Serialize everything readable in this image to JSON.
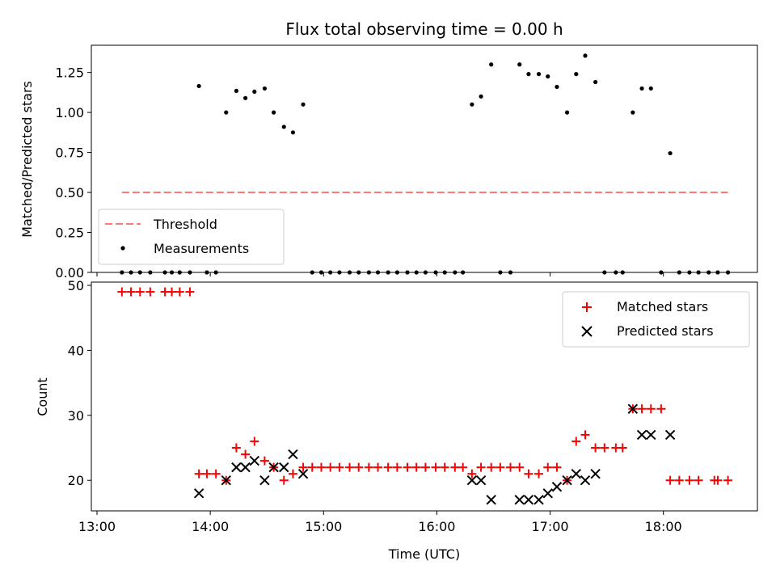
{
  "chart_data": [
    {
      "type": "scatter",
      "title": "Flux total observing time = 0.00 h",
      "xlabel": "",
      "ylabel": "Matched/Predicted stars",
      "xlim": [
        12.95,
        18.83
      ],
      "ylim": [
        0,
        1.42
      ],
      "yticks": [
        0.0,
        0.25,
        0.5,
        0.75,
        1.0,
        1.25
      ],
      "ytick_labels": [
        "0.00",
        "0.25",
        "0.50",
        "0.75",
        "1.00",
        "1.25"
      ],
      "legend_position": "lower-left",
      "legend": [
        "Threshold",
        "Measurements"
      ],
      "threshold": {
        "name": "Threshold",
        "y": 0.5,
        "x_start": 13.22,
        "x_end": 18.57,
        "color": "#ff7777"
      },
      "series": [
        {
          "name": "Measurements",
          "color": "#000000",
          "points": [
            [
              13.22,
              0
            ],
            [
              13.3,
              0
            ],
            [
              13.38,
              0
            ],
            [
              13.47,
              0
            ],
            [
              13.6,
              0
            ],
            [
              13.66,
              0
            ],
            [
              13.73,
              0
            ],
            [
              13.82,
              0
            ],
            [
              13.9,
              1.165
            ],
            [
              13.97,
              0
            ],
            [
              14.05,
              0
            ],
            [
              14.14,
              1.0
            ],
            [
              14.23,
              1.135
            ],
            [
              14.31,
              1.09
            ],
            [
              14.39,
              1.13
            ],
            [
              14.48,
              1.15
            ],
            [
              14.56,
              1.0
            ],
            [
              14.65,
              0.91
            ],
            [
              14.73,
              0.875
            ],
            [
              14.82,
              1.05
            ],
            [
              14.9,
              0
            ],
            [
              14.98,
              0
            ],
            [
              15.06,
              0
            ],
            [
              15.14,
              0
            ],
            [
              15.23,
              0
            ],
            [
              15.31,
              0
            ],
            [
              15.4,
              0
            ],
            [
              15.48,
              0
            ],
            [
              15.57,
              0
            ],
            [
              15.65,
              0
            ],
            [
              15.74,
              0
            ],
            [
              15.82,
              0
            ],
            [
              15.9,
              0
            ],
            [
              15.99,
              0
            ],
            [
              16.07,
              0
            ],
            [
              16.16,
              0
            ],
            [
              16.23,
              0
            ],
            [
              16.31,
              1.05
            ],
            [
              16.39,
              1.1
            ],
            [
              16.48,
              1.3
            ],
            [
              16.56,
              0
            ],
            [
              16.65,
              0
            ],
            [
              16.73,
              1.3
            ],
            [
              16.81,
              1.24
            ],
            [
              16.9,
              1.24
            ],
            [
              16.98,
              1.225
            ],
            [
              17.06,
              1.16
            ],
            [
              17.15,
              1.0
            ],
            [
              17.23,
              1.24
            ],
            [
              17.31,
              1.355
            ],
            [
              17.4,
              1.19
            ],
            [
              17.48,
              0
            ],
            [
              17.58,
              0
            ],
            [
              17.64,
              0
            ],
            [
              17.73,
              1.0
            ],
            [
              17.81,
              1.15
            ],
            [
              17.89,
              1.15
            ],
            [
              17.98,
              0
            ],
            [
              18.06,
              0.745
            ],
            [
              18.14,
              0
            ],
            [
              18.23,
              0
            ],
            [
              18.31,
              0
            ],
            [
              18.4,
              0
            ],
            [
              18.48,
              0
            ],
            [
              18.57,
              0
            ]
          ]
        }
      ]
    },
    {
      "type": "scatter",
      "title": "",
      "xlabel": "Time (UTC)",
      "ylabel": "Count",
      "xlim": [
        12.95,
        18.83
      ],
      "ylim": [
        15.3,
        50.5
      ],
      "yticks": [
        20,
        30,
        40,
        50
      ],
      "ytick_labels": [
        "20",
        "30",
        "40",
        "50"
      ],
      "xticks": [
        13,
        14,
        15,
        16,
        17,
        18
      ],
      "xtick_labels": [
        "13:00",
        "14:00",
        "15:00",
        "16:00",
        "17:00",
        "18:00"
      ],
      "legend_position": "top-right",
      "legend": [
        "Matched stars",
        "Predicted stars"
      ],
      "series": [
        {
          "name": "Matched stars",
          "marker": "plus",
          "color": "#ff0000",
          "points": [
            [
              13.22,
              49
            ],
            [
              13.3,
              49
            ],
            [
              13.38,
              49
            ],
            [
              13.47,
              49
            ],
            [
              13.6,
              49
            ],
            [
              13.66,
              49
            ],
            [
              13.73,
              49
            ],
            [
              13.82,
              49
            ],
            [
              13.9,
              21
            ],
            [
              13.97,
              21
            ],
            [
              14.05,
              21
            ],
            [
              14.14,
              20
            ],
            [
              14.23,
              25
            ],
            [
              14.31,
              24
            ],
            [
              14.39,
              26
            ],
            [
              14.48,
              23
            ],
            [
              14.56,
              22
            ],
            [
              14.65,
              20
            ],
            [
              14.73,
              21
            ],
            [
              14.82,
              22
            ],
            [
              14.9,
              22
            ],
            [
              14.98,
              22
            ],
            [
              15.06,
              22
            ],
            [
              15.14,
              22
            ],
            [
              15.23,
              22
            ],
            [
              15.31,
              22
            ],
            [
              15.4,
              22
            ],
            [
              15.48,
              22
            ],
            [
              15.57,
              22
            ],
            [
              15.65,
              22
            ],
            [
              15.74,
              22
            ],
            [
              15.82,
              22
            ],
            [
              15.9,
              22
            ],
            [
              15.99,
              22
            ],
            [
              16.07,
              22
            ],
            [
              16.16,
              22
            ],
            [
              16.23,
              22
            ],
            [
              16.31,
              21
            ],
            [
              16.39,
              22
            ],
            [
              16.48,
              22
            ],
            [
              16.56,
              22
            ],
            [
              16.65,
              22
            ],
            [
              16.73,
              22
            ],
            [
              16.81,
              21
            ],
            [
              16.9,
              21
            ],
            [
              16.98,
              22
            ],
            [
              17.06,
              22
            ],
            [
              17.15,
              20
            ],
            [
              17.23,
              26
            ],
            [
              17.31,
              27
            ],
            [
              17.4,
              25
            ],
            [
              17.48,
              25
            ],
            [
              17.58,
              25
            ],
            [
              17.64,
              25
            ],
            [
              17.73,
              31
            ],
            [
              17.81,
              31
            ],
            [
              17.89,
              31
            ],
            [
              17.98,
              31
            ],
            [
              18.06,
              20
            ],
            [
              18.14,
              20
            ],
            [
              18.23,
              20
            ],
            [
              18.31,
              20
            ],
            [
              18.45,
              20
            ],
            [
              18.48,
              20
            ],
            [
              18.57,
              20
            ]
          ]
        },
        {
          "name": "Predicted stars",
          "marker": "x",
          "color": "#000000",
          "points": [
            [
              13.9,
              18
            ],
            [
              14.14,
              20
            ],
            [
              14.23,
              22
            ],
            [
              14.31,
              22
            ],
            [
              14.39,
              23
            ],
            [
              14.48,
              20
            ],
            [
              14.56,
              22
            ],
            [
              14.65,
              22
            ],
            [
              14.73,
              24
            ],
            [
              14.82,
              21
            ],
            [
              16.31,
              20
            ],
            [
              16.39,
              20
            ],
            [
              16.48,
              17
            ],
            [
              16.73,
              17
            ],
            [
              16.81,
              17
            ],
            [
              16.9,
              17
            ],
            [
              16.98,
              18
            ],
            [
              17.06,
              19
            ],
            [
              17.15,
              20
            ],
            [
              17.23,
              21
            ],
            [
              17.31,
              20
            ],
            [
              17.4,
              21
            ],
            [
              17.73,
              31
            ],
            [
              17.81,
              27
            ],
            [
              17.89,
              27
            ],
            [
              18.06,
              27
            ]
          ]
        }
      ]
    }
  ]
}
